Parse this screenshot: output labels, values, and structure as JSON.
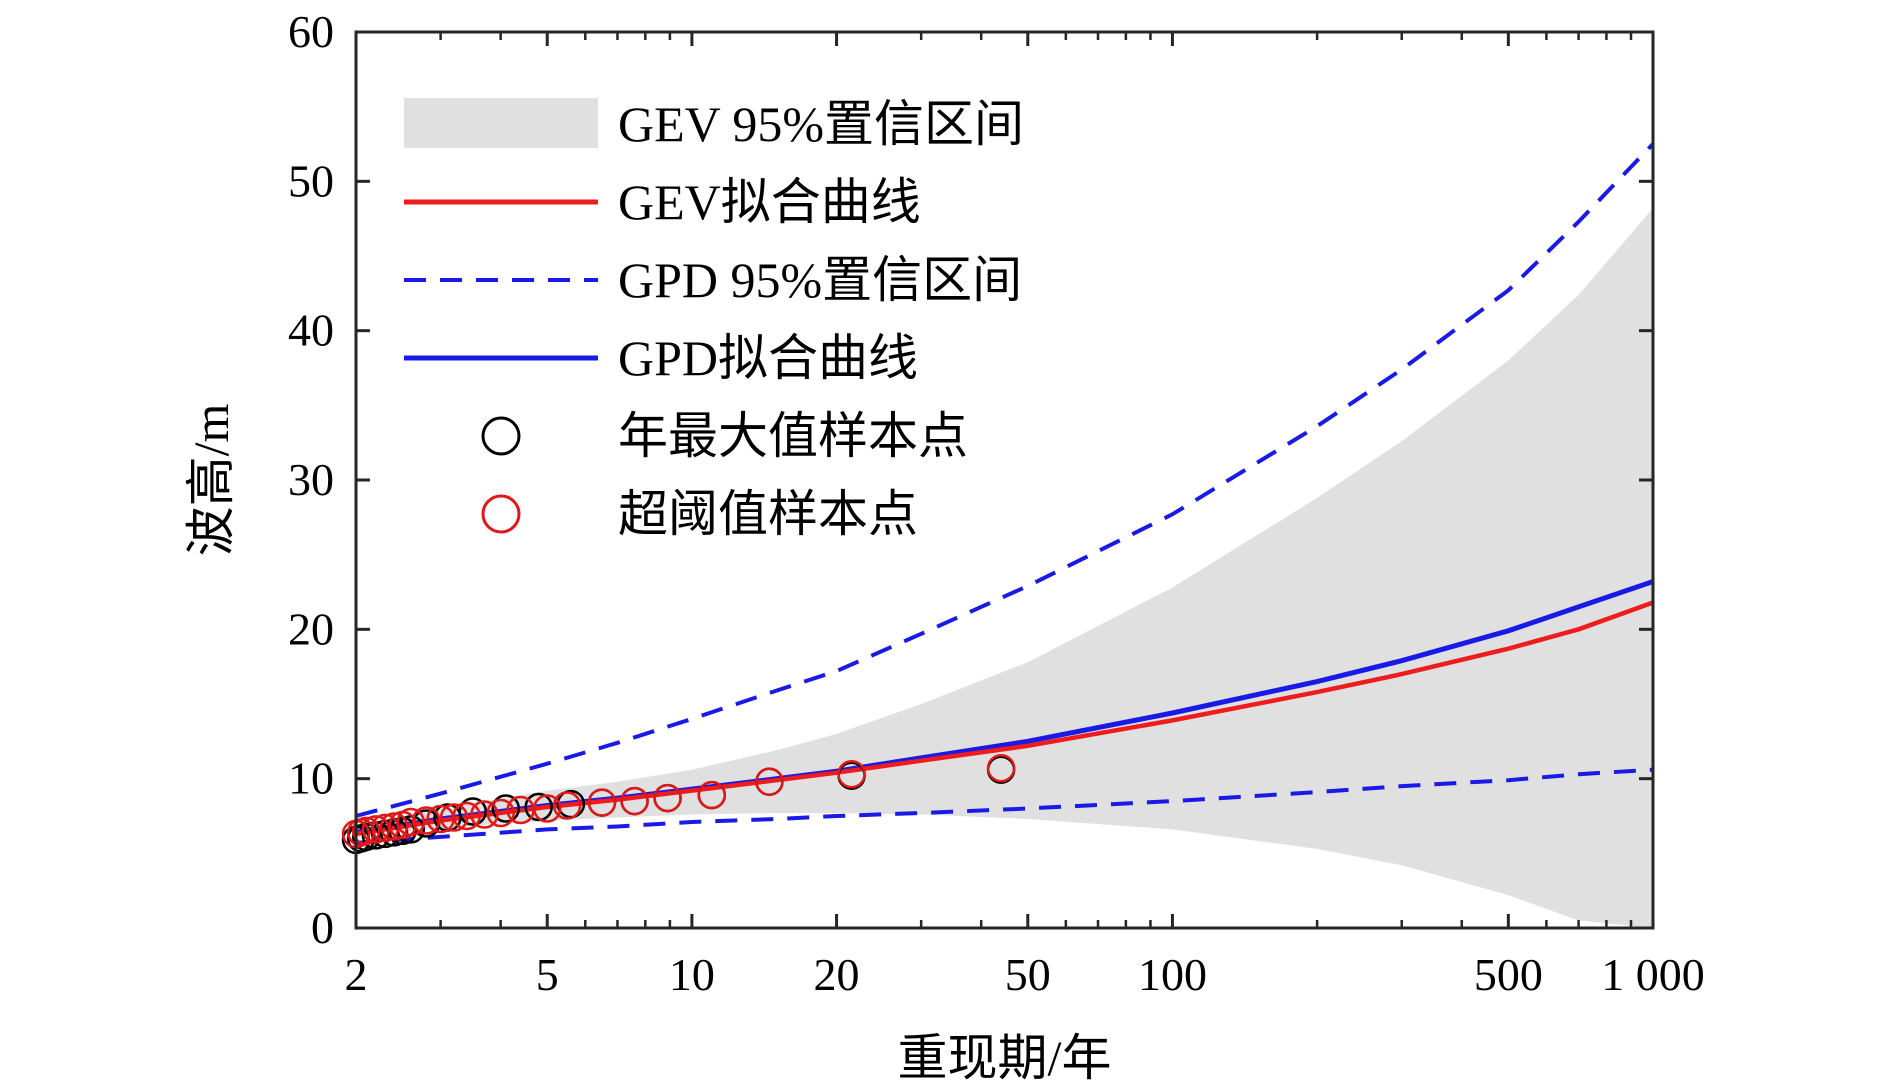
{
  "chart_data": {
    "type": "line",
    "title": "",
    "xlabel": "重现期/年",
    "ylabel": "波高/m",
    "x_scale": "log",
    "xlim": [
      2,
      1000
    ],
    "ylim": [
      0,
      60
    ],
    "x_ticks": [
      2,
      5,
      10,
      20,
      50,
      100,
      500,
      1000
    ],
    "x_tick_labels": [
      "2",
      "5",
      "10",
      "20",
      "50",
      "100",
      "500",
      "1 000"
    ],
    "y_ticks": [
      0,
      10,
      20,
      30,
      40,
      50,
      60
    ],
    "y_tick_labels": [
      "0",
      "10",
      "20",
      "30",
      "40",
      "50",
      "60"
    ],
    "grid": false,
    "legend": "top-left",
    "colors": {
      "gev_ci": "#e0e0e0",
      "gev_fit": "#ee1c1c",
      "gpd": "#1a1ae6",
      "annual_max_marker": "#000000",
      "pot_marker": "#e01818"
    },
    "gev_ci": {
      "name": "GEV 95%置信区间",
      "x": [
        2,
        3,
        5,
        7,
        10,
        15,
        20,
        30,
        50,
        100,
        200,
        300,
        500,
        700,
        1000
      ],
      "lower": [
        6.1,
        6.7,
        7.2,
        7.4,
        7.6,
        7.7,
        7.7,
        7.6,
        7.3,
        6.6,
        5.3,
        4.2,
        2.2,
        0.5,
        0
      ],
      "upper": [
        6.6,
        8.0,
        9.2,
        9.8,
        10.6,
        11.9,
        13.0,
        15.0,
        17.8,
        22.8,
        28.8,
        32.6,
        38.0,
        42.4,
        48.2
      ]
    },
    "series": [
      {
        "name": "GEV拟合曲线",
        "x": [
          2,
          3,
          5,
          7,
          10,
          15,
          20,
          30,
          50,
          100,
          200,
          300,
          500,
          700,
          1000
        ],
        "values": [
          6.3,
          7.2,
          8.1,
          8.6,
          9.2,
          9.9,
          10.4,
          11.2,
          12.2,
          13.9,
          15.8,
          17.0,
          18.7,
          20.0,
          21.8
        ]
      },
      {
        "name": "GPD拟合曲线",
        "x": [
          2,
          3,
          5,
          7,
          10,
          15,
          20,
          30,
          50,
          100,
          200,
          300,
          500,
          700,
          1000
        ],
        "values": [
          6.4,
          7.3,
          8.2,
          8.7,
          9.3,
          10.0,
          10.5,
          11.4,
          12.5,
          14.4,
          16.5,
          17.9,
          19.9,
          21.5,
          23.2
        ]
      },
      {
        "name": "GPD 95%置信区间",
        "x": [
          2,
          3,
          5,
          7,
          10,
          15,
          20,
          30,
          50,
          100,
          200,
          300,
          500,
          700,
          1000
        ],
        "lower": [
          5.7,
          6.1,
          6.6,
          6.8,
          7.1,
          7.3,
          7.5,
          7.7,
          8.0,
          8.5,
          9.1,
          9.5,
          9.9,
          10.3,
          10.6
        ],
        "upper": [
          7.5,
          9.0,
          11.0,
          12.4,
          14.0,
          15.9,
          17.2,
          19.7,
          22.9,
          27.7,
          33.6,
          37.4,
          42.7,
          47.3,
          52.5
        ]
      }
    ],
    "annual_max_points": {
      "name": "年最大值样本点",
      "x": [
        2.0,
        2.05,
        2.1,
        2.2,
        2.3,
        2.4,
        2.5,
        2.6,
        2.8,
        3.1,
        3.5,
        4.1,
        4.8,
        5.6,
        6.5,
        7.6,
        8.9,
        11.0,
        14.5,
        21.5,
        44
      ],
      "y": [
        5.9,
        6.0,
        6.1,
        6.2,
        6.3,
        6.4,
        6.5,
        6.6,
        7.0,
        7.4,
        7.8,
        8.0,
        8.1,
        8.3,
        8.4,
        8.5,
        8.7,
        8.9,
        9.8,
        10.2,
        10.6
      ]
    },
    "pot_points": {
      "name": "超阈值样本点",
      "x": [
        2.0,
        2.05,
        2.1,
        2.2,
        2.3,
        2.4,
        2.5,
        2.6,
        2.8,
        3.0,
        3.2,
        3.4,
        3.7,
        4.0,
        4.4,
        5.0,
        5.5,
        6.5,
        7.6,
        8.9,
        11.0,
        14.5,
        21.5,
        44
      ],
      "y": [
        6.3,
        6.4,
        6.5,
        6.6,
        6.7,
        6.8,
        6.9,
        7.1,
        7.2,
        7.3,
        7.4,
        7.5,
        7.6,
        7.7,
        7.9,
        8.0,
        8.2,
        8.4,
        8.5,
        8.7,
        8.9,
        9.8,
        10.3,
        10.7
      ]
    },
    "legend_entries": [
      {
        "label": "GEV 95%置信区间",
        "kind": "patch"
      },
      {
        "label": "GEV拟合曲线",
        "kind": "line"
      },
      {
        "label": "GPD 95%置信区间",
        "kind": "dashed"
      },
      {
        "label": "GPD拟合曲线",
        "kind": "line-blue"
      },
      {
        "label": "年最大值样本点",
        "kind": "marker-black"
      },
      {
        "label": "超阈值样本点",
        "kind": "marker-red"
      }
    ]
  }
}
